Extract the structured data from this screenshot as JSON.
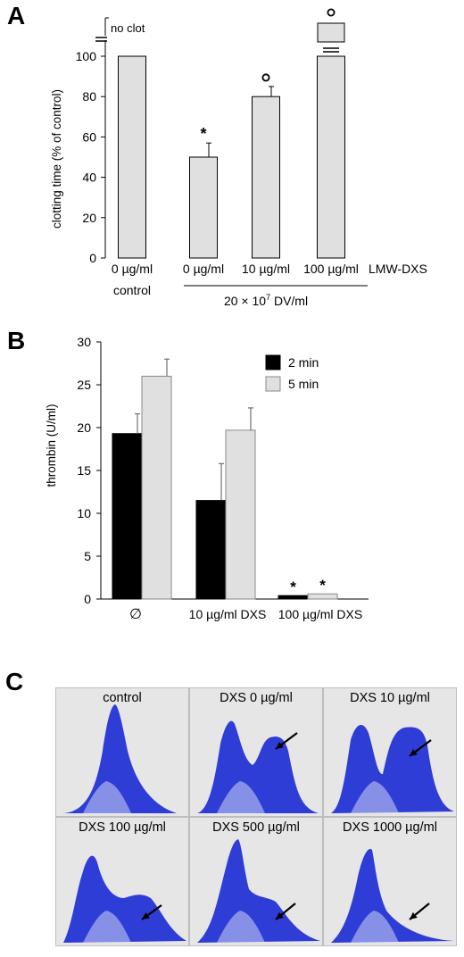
{
  "panels": {
    "a_letter": "A",
    "b_letter": "B",
    "c_letter": "C"
  },
  "chart_data": [
    {
      "type": "bar",
      "panel": "A",
      "ylabel": "clotting time (% of control)",
      "ylim": [
        0,
        100
      ],
      "yticks": [
        0,
        20,
        40,
        60,
        80,
        100
      ],
      "categories": [
        "0 µg/ml",
        "0 µg/ml",
        "10 µg/ml",
        "100 µg/ml"
      ],
      "values": [
        100,
        50,
        80,
        100
      ],
      "errors": [
        0,
        7,
        5,
        0
      ],
      "markers": [
        "",
        "*",
        "o",
        "o"
      ],
      "bar_color": "#e0e0e0",
      "axis_break_label": "no clot",
      "series_label": "LMW-DXS",
      "control_label": "control",
      "group_label": "20 × 10",
      "group_label_sup": "7",
      "group_label_unit": " DV/ml"
    },
    {
      "type": "bar",
      "panel": "B",
      "ylabel": "thrombin (U/ml)",
      "ylim": [
        0,
        30
      ],
      "yticks": [
        0,
        5,
        10,
        15,
        20,
        25,
        30
      ],
      "categories": [
        "∅",
        "10 µg/ml DXS",
        "100 µg/ml DXS"
      ],
      "legend_position": "top-right",
      "series": [
        {
          "name": "2 min",
          "color": "#000000",
          "values": [
            19.3,
            11.5,
            0.4
          ],
          "errors": [
            2.3,
            4.3,
            0
          ],
          "markers": [
            "",
            "",
            "*"
          ]
        },
        {
          "name": "5 min",
          "color": "#e0e0e0",
          "values": [
            26,
            19.7,
            0.6
          ],
          "errors": [
            2,
            2.6,
            0
          ],
          "markers": [
            "",
            "",
            "*"
          ]
        }
      ]
    }
  ],
  "gels": {
    "color": "#1f2fd6",
    "cells": [
      {
        "label": "control"
      },
      {
        "label": "DXS 0 µg/ml"
      },
      {
        "label": "DXS 10 µg/ml"
      },
      {
        "label": "DXS 100 µg/ml"
      },
      {
        "label": "DXS 500 µg/ml"
      },
      {
        "label": "DXS 1000 µg/ml"
      }
    ]
  }
}
